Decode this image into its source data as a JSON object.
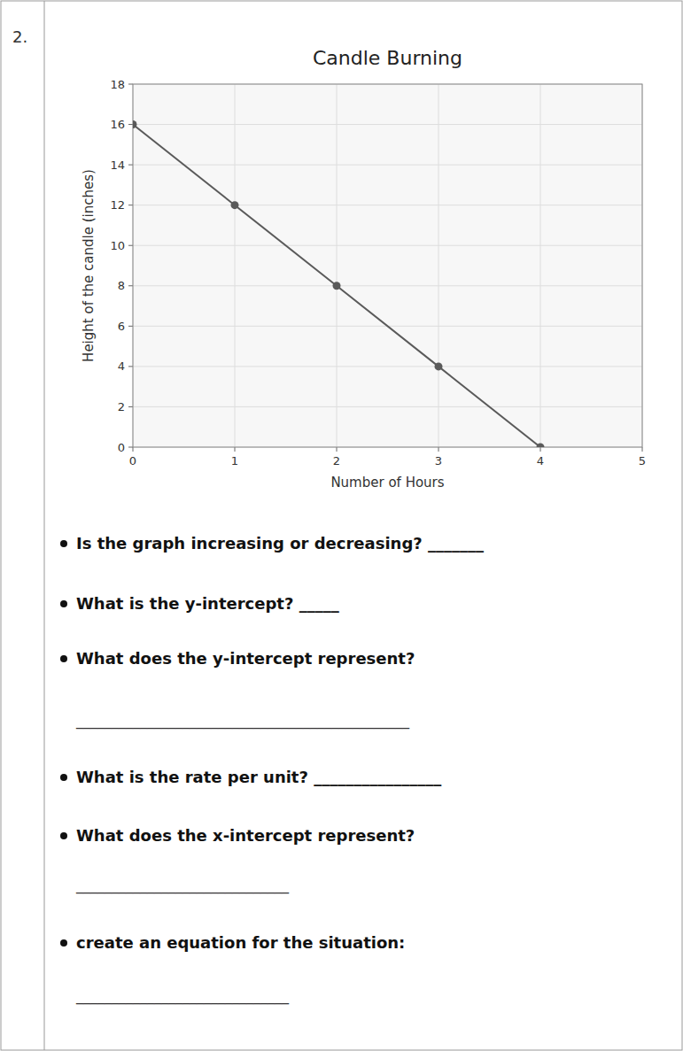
{
  "chart_data": {
    "type": "line",
    "title": "Candle Burning",
    "x_label": "Number of Hours",
    "y_label": "Height of the candle (inches)",
    "x": [
      0,
      1,
      2,
      3,
      4
    ],
    "values": [
      16,
      12,
      8,
      4,
      0
    ],
    "color": "#5a5a5a",
    "marker": "circle",
    "line_style": "solid",
    "xlim": [
      0,
      5
    ],
    "xticks": [
      0,
      1,
      2,
      3,
      4,
      5
    ],
    "ylim": [
      0,
      18
    ],
    "yticks": [
      0,
      2,
      4,
      6,
      8,
      10,
      12,
      14,
      16,
      18
    ],
    "grid": true,
    "annotations": [
      "2.",
      "Is the graph increasing or decreasing?  _______",
      "What is the y-intercept?  _____",
      "What does the y-intercept represent?",
      "_______________________________________________",
      "What is the rate per unit?  ________________",
      "What does the x-intercept represent?",
      "______________________________",
      "create an equation for the situation:",
      "______________________________"
    ]
  }
}
